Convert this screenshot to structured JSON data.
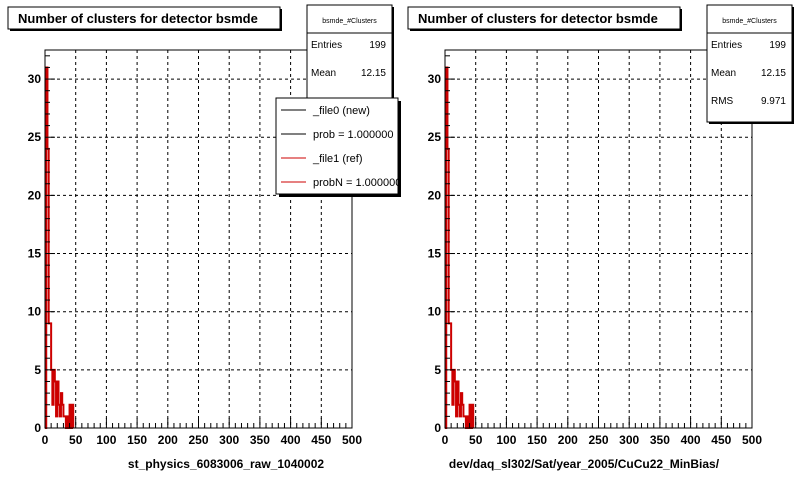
{
  "panels": [
    {
      "title": "Number of clusters for detector bsmde",
      "xlabel": "st_physics_6083006_raw_1040002",
      "stats": {
        "name": "bsmde_#Clusters",
        "rows": [
          {
            "label": "Entries",
            "value": "199"
          },
          {
            "label": "Mean",
            "value": "12.15"
          }
        ]
      },
      "legend": [
        {
          "label": "_file0 (new)",
          "color": "#000000"
        },
        {
          "label": "prob = 1.000000",
          "color": "#000000"
        },
        {
          "label": "_file1 (ref)",
          "color": "#cc0000"
        },
        {
          "label": "probN = 1.000000",
          "color": "#cc0000"
        }
      ]
    },
    {
      "title": "Number of clusters for detector bsmde",
      "xlabel": "dev/daq_sl302/Sat/year_2005/CuCu22_MinBias/",
      "stats": {
        "name": "bsmde_#Clusters",
        "rows": [
          {
            "label": "Entries",
            "value": "199"
          },
          {
            "label": "Mean",
            "value": "12.15"
          },
          {
            "label": "RMS",
            "value": "9.971"
          }
        ]
      },
      "legend": []
    }
  ],
  "chart_data": [
    {
      "type": "bar",
      "title": "Number of clusters for detector bsmde",
      "xlabel": "st_physics_6083006_raw_1040002",
      "ylabel": "",
      "xlim": [
        0,
        500
      ],
      "ylim": [
        0,
        32.5
      ],
      "xticks": [
        0,
        50,
        100,
        150,
        200,
        250,
        300,
        350,
        400,
        450,
        500
      ],
      "yticks": [
        0,
        5,
        10,
        15,
        20,
        25,
        30
      ],
      "grid": true,
      "legend_position": "top-right",
      "bin_width": 2,
      "series": [
        {
          "name": "_file0 (new)",
          "color": "#000000",
          "bins": [
            [
              0,
              0
            ],
            [
              2,
              31
            ],
            [
              4,
              24
            ],
            [
              6,
              9
            ],
            [
              8,
              9
            ],
            [
              10,
              5
            ],
            [
              12,
              2
            ],
            [
              14,
              5
            ],
            [
              16,
              4
            ],
            [
              18,
              1
            ],
            [
              20,
              4
            ],
            [
              22,
              2
            ],
            [
              24,
              1
            ],
            [
              26,
              3
            ],
            [
              28,
              2
            ],
            [
              30,
              1
            ],
            [
              32,
              1
            ],
            [
              34,
              0
            ],
            [
              36,
              1
            ],
            [
              38,
              0
            ],
            [
              40,
              2
            ],
            [
              42,
              0
            ],
            [
              44,
              2
            ]
          ]
        },
        {
          "name": "_file1 (ref)",
          "color": "#cc0000",
          "bins": [
            [
              0,
              0
            ],
            [
              2,
              31
            ],
            [
              4,
              24
            ],
            [
              6,
              9
            ],
            [
              8,
              9
            ],
            [
              10,
              5
            ],
            [
              12,
              2
            ],
            [
              14,
              5
            ],
            [
              16,
              4
            ],
            [
              18,
              1
            ],
            [
              20,
              4
            ],
            [
              22,
              2
            ],
            [
              24,
              1
            ],
            [
              26,
              3
            ],
            [
              28,
              2
            ],
            [
              30,
              1
            ],
            [
              32,
              1
            ],
            [
              34,
              0
            ],
            [
              36,
              1
            ],
            [
              38,
              0
            ],
            [
              40,
              2
            ],
            [
              42,
              0
            ],
            [
              44,
              2
            ]
          ]
        }
      ]
    },
    {
      "type": "bar",
      "title": "Number of clusters for detector bsmde",
      "xlabel": "dev/daq_sl302/Sat/year_2005/CuCu22_MinBias/",
      "ylabel": "",
      "xlim": [
        0,
        500
      ],
      "ylim": [
        0,
        32.5
      ],
      "xticks": [
        0,
        50,
        100,
        150,
        200,
        250,
        300,
        350,
        400,
        450,
        500
      ],
      "yticks": [
        0,
        5,
        10,
        15,
        20,
        25,
        30
      ],
      "grid": true,
      "bin_width": 2,
      "series": [
        {
          "color": "#cc0000",
          "bins": [
            [
              0,
              0
            ],
            [
              2,
              31
            ],
            [
              4,
              24
            ],
            [
              6,
              9
            ],
            [
              8,
              9
            ],
            [
              10,
              5
            ],
            [
              12,
              2
            ],
            [
              14,
              5
            ],
            [
              16,
              4
            ],
            [
              18,
              1
            ],
            [
              20,
              4
            ],
            [
              22,
              2
            ],
            [
              24,
              1
            ],
            [
              26,
              3
            ],
            [
              28,
              2
            ],
            [
              30,
              1
            ],
            [
              32,
              1
            ],
            [
              34,
              0
            ],
            [
              36,
              1
            ],
            [
              38,
              0
            ],
            [
              40,
              2
            ],
            [
              42,
              0
            ],
            [
              44,
              2
            ]
          ]
        }
      ]
    }
  ]
}
